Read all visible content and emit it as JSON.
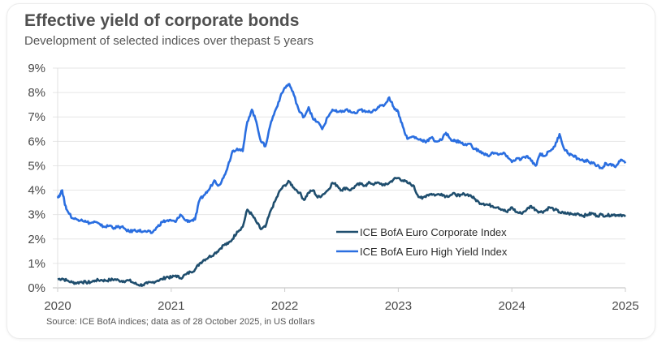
{
  "header": {
    "title": "Effective yield of corporate bonds",
    "subtitle": "Development of selected indices over thepast 5 years"
  },
  "footer": {
    "source": "Source: ICE BofA indices; data as of 28 October 2025, in US dollars"
  },
  "chart_data": {
    "type": "line",
    "title": "Effective yield of corporate bonds",
    "subtitle": "Development of selected indices over thepast 5 years",
    "xlabel": "",
    "ylabel": "",
    "xlim": [
      2020,
      2025
    ],
    "ylim": [
      0,
      9
    ],
    "grid": true,
    "legend_position": "center-right",
    "x_ticks": [
      2020,
      2021,
      2022,
      2023,
      2024,
      2025
    ],
    "x_tick_labels": [
      "2020",
      "2021",
      "2022",
      "2023",
      "2024",
      "2025"
    ],
    "y_ticks": [
      0,
      1,
      2,
      3,
      4,
      5,
      6,
      7,
      8,
      9
    ],
    "y_tick_labels": [
      "0%",
      "1%",
      "2%",
      "3%",
      "4%",
      "5%",
      "6%",
      "7%",
      "8%",
      "9%"
    ],
    "series": [
      {
        "name": "ICE BofA Euro Corporate Index",
        "color": "#1f4e6e",
        "x": [
          2020.0,
          2020.04,
          2020.08,
          2020.13,
          2020.17,
          2020.21,
          2020.25,
          2020.29,
          2020.33,
          2020.38,
          2020.42,
          2020.46,
          2020.5,
          2020.54,
          2020.58,
          2020.63,
          2020.67,
          2020.71,
          2020.75,
          2020.79,
          2020.83,
          2020.88,
          2020.92,
          2020.96,
          2021.0,
          2021.04,
          2021.08,
          2021.13,
          2021.17,
          2021.21,
          2021.25,
          2021.29,
          2021.33,
          2021.38,
          2021.42,
          2021.46,
          2021.5,
          2021.54,
          2021.58,
          2021.63,
          2021.67,
          2021.71,
          2021.75,
          2021.79,
          2021.83,
          2021.88,
          2021.92,
          2021.96,
          2022.0,
          2022.04,
          2022.08,
          2022.13,
          2022.17,
          2022.21,
          2022.25,
          2022.29,
          2022.33,
          2022.38,
          2022.42,
          2022.46,
          2022.5,
          2022.54,
          2022.58,
          2022.63,
          2022.67,
          2022.71,
          2022.75,
          2022.79,
          2022.83,
          2022.88,
          2022.92,
          2022.96,
          2023.0,
          2023.04,
          2023.08,
          2023.13,
          2023.17,
          2023.21,
          2023.25,
          2023.29,
          2023.33,
          2023.38,
          2023.42,
          2023.46,
          2023.5,
          2023.54,
          2023.58,
          2023.63,
          2023.67,
          2023.71,
          2023.75,
          2023.79,
          2023.83,
          2023.88,
          2023.92,
          2023.96,
          2024.0,
          2024.04,
          2024.08,
          2024.13,
          2024.17,
          2024.21,
          2024.25,
          2024.29,
          2024.33,
          2024.38,
          2024.42,
          2024.46,
          2024.5,
          2024.54,
          2024.58,
          2024.63,
          2024.67,
          2024.71,
          2024.75,
          2024.79,
          2024.83,
          2024.88,
          2024.92,
          2024.96,
          2025.0
        ],
        "values": [
          0.35,
          0.38,
          0.3,
          0.22,
          0.2,
          0.25,
          0.22,
          0.23,
          0.3,
          0.32,
          0.3,
          0.32,
          0.35,
          0.3,
          0.28,
          0.3,
          0.2,
          0.12,
          0.12,
          0.18,
          0.22,
          0.3,
          0.35,
          0.45,
          0.42,
          0.5,
          0.4,
          0.55,
          0.65,
          0.75,
          1.0,
          1.15,
          1.25,
          1.4,
          1.55,
          1.75,
          1.8,
          2.0,
          2.3,
          2.5,
          3.2,
          3.0,
          2.7,
          2.4,
          2.5,
          3.2,
          3.6,
          4.0,
          4.2,
          4.35,
          4.1,
          3.9,
          3.6,
          3.9,
          4.0,
          3.7,
          3.8,
          4.0,
          4.3,
          4.2,
          4.0,
          4.1,
          4.0,
          4.2,
          4.25,
          4.2,
          4.3,
          4.25,
          4.3,
          4.2,
          4.3,
          4.45,
          4.5,
          4.4,
          4.3,
          4.2,
          3.8,
          3.65,
          3.8,
          3.85,
          3.8,
          3.85,
          3.75,
          3.8,
          3.85,
          3.75,
          3.85,
          3.8,
          3.65,
          3.5,
          3.45,
          3.4,
          3.35,
          3.3,
          3.2,
          3.1,
          3.3,
          3.1,
          3.05,
          3.2,
          3.35,
          3.2,
          3.1,
          3.15,
          3.3,
          3.2,
          3.1,
          3.05,
          3.05,
          3.0,
          3.05,
          2.95,
          3.0,
          3.05,
          2.95,
          3.0,
          2.95,
          3.0,
          2.98,
          3.0,
          2.92
        ]
      },
      {
        "name": "ICE BofA Euro High Yield Index",
        "color": "#2a6ee0",
        "x": [
          2020.0,
          2020.02,
          2020.04,
          2020.06,
          2020.08,
          2020.13,
          2020.17,
          2020.21,
          2020.25,
          2020.29,
          2020.33,
          2020.38,
          2020.42,
          2020.46,
          2020.5,
          2020.54,
          2020.58,
          2020.63,
          2020.67,
          2020.71,
          2020.75,
          2020.79,
          2020.83,
          2020.88,
          2020.92,
          2020.96,
          2021.0,
          2021.04,
          2021.08,
          2021.13,
          2021.17,
          2021.21,
          2021.25,
          2021.29,
          2021.33,
          2021.38,
          2021.42,
          2021.46,
          2021.5,
          2021.54,
          2021.58,
          2021.63,
          2021.67,
          2021.71,
          2021.75,
          2021.79,
          2021.83,
          2021.88,
          2021.92,
          2021.96,
          2022.0,
          2022.04,
          2022.08,
          2022.13,
          2022.17,
          2022.21,
          2022.25,
          2022.29,
          2022.33,
          2022.38,
          2022.42,
          2022.46,
          2022.5,
          2022.54,
          2022.58,
          2022.63,
          2022.67,
          2022.71,
          2022.75,
          2022.79,
          2022.83,
          2022.88,
          2022.92,
          2022.96,
          2023.0,
          2023.04,
          2023.08,
          2023.13,
          2023.17,
          2023.21,
          2023.25,
          2023.29,
          2023.33,
          2023.38,
          2023.42,
          2023.46,
          2023.5,
          2023.54,
          2023.58,
          2023.63,
          2023.67,
          2023.71,
          2023.75,
          2023.79,
          2023.83,
          2023.88,
          2023.92,
          2023.96,
          2024.0,
          2024.04,
          2024.08,
          2024.13,
          2024.17,
          2024.21,
          2024.25,
          2024.29,
          2024.33,
          2024.38,
          2024.42,
          2024.46,
          2024.5,
          2024.54,
          2024.58,
          2024.63,
          2024.67,
          2024.71,
          2024.75,
          2024.79,
          2024.83,
          2024.88,
          2024.92,
          2024.96,
          2025.0
        ],
        "values": [
          3.75,
          3.8,
          4.0,
          3.5,
          3.2,
          2.85,
          2.8,
          2.8,
          2.7,
          2.65,
          2.7,
          2.55,
          2.5,
          2.55,
          2.45,
          2.5,
          2.45,
          2.3,
          2.35,
          2.35,
          2.3,
          2.3,
          2.25,
          2.5,
          2.7,
          2.75,
          2.75,
          2.7,
          3.0,
          2.75,
          2.75,
          2.8,
          3.6,
          3.8,
          4.0,
          4.4,
          4.2,
          4.5,
          5.0,
          5.6,
          5.7,
          5.6,
          6.8,
          7.3,
          6.8,
          6.0,
          5.8,
          6.8,
          7.3,
          7.8,
          8.2,
          8.35,
          7.9,
          7.2,
          7.0,
          7.4,
          6.9,
          6.8,
          6.5,
          7.0,
          7.3,
          7.2,
          7.2,
          7.3,
          7.2,
          7.15,
          7.3,
          7.2,
          7.2,
          7.3,
          7.4,
          7.5,
          7.8,
          7.4,
          7.2,
          6.6,
          6.1,
          6.2,
          6.1,
          6.05,
          6.0,
          6.15,
          6.0,
          6.05,
          6.35,
          6.1,
          6.0,
          6.0,
          5.85,
          5.9,
          5.7,
          5.6,
          5.5,
          5.4,
          5.55,
          5.45,
          5.5,
          5.4,
          5.15,
          5.3,
          5.25,
          5.4,
          5.2,
          5.0,
          5.5,
          5.4,
          5.6,
          5.8,
          6.3,
          5.7,
          5.5,
          5.4,
          5.3,
          5.2,
          5.2,
          5.1,
          5.0,
          4.9,
          5.1,
          5.0,
          5.0,
          5.25,
          5.1
        ]
      }
    ]
  }
}
